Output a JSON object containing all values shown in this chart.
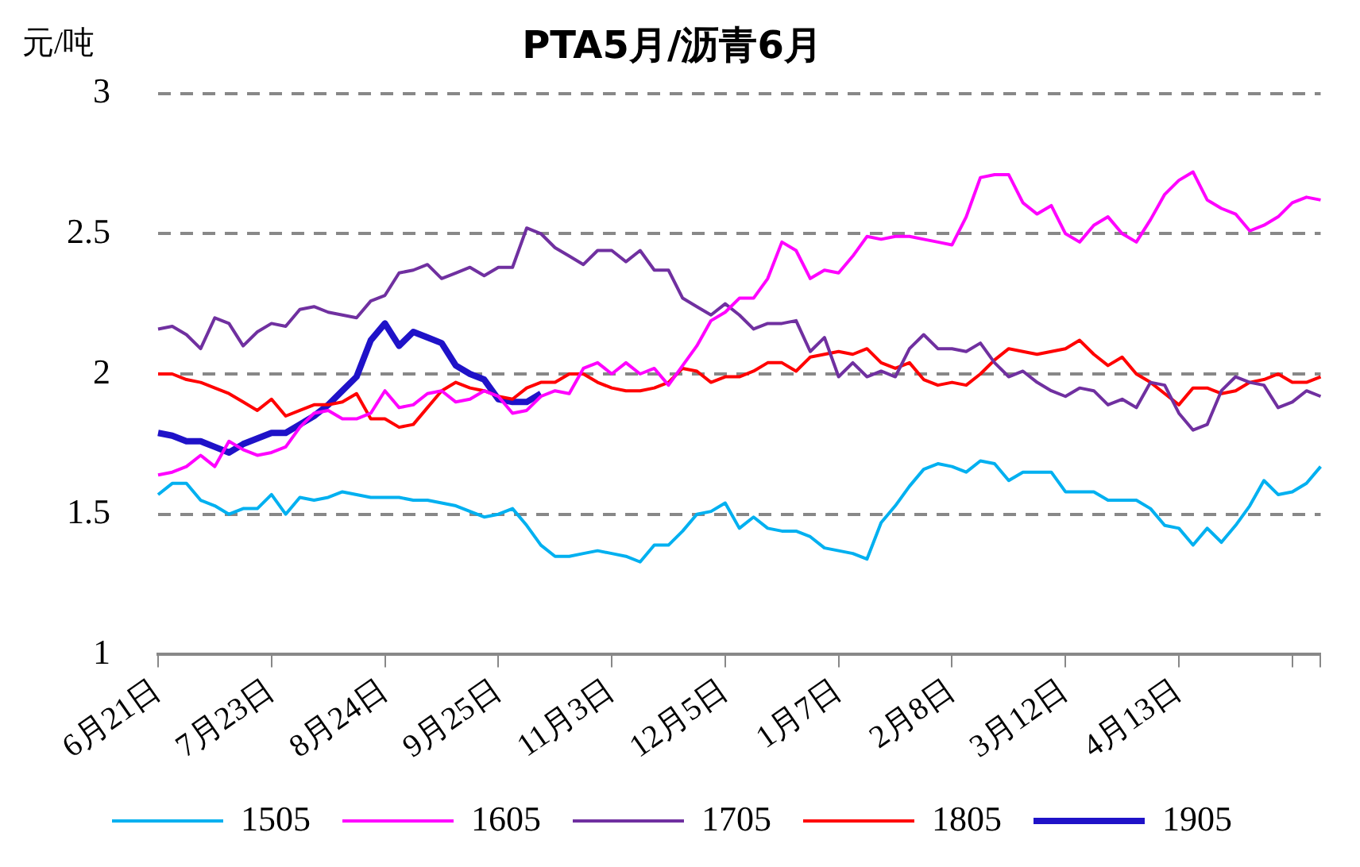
{
  "chart_data": {
    "type": "line",
    "title": "PTA5月/沥青6月",
    "ylabel": "元/吨",
    "categories": [
      "6月21日",
      null,
      null,
      null,
      null,
      null,
      null,
      null,
      "7月23日",
      null,
      null,
      null,
      null,
      null,
      null,
      null,
      "8月24日",
      null,
      null,
      null,
      null,
      null,
      null,
      null,
      "9月25日",
      null,
      null,
      null,
      null,
      null,
      null,
      null,
      "11月3日",
      null,
      null,
      null,
      null,
      null,
      null,
      null,
      "12月5日",
      null,
      null,
      null,
      null,
      null,
      null,
      null,
      "1月7日",
      null,
      null,
      null,
      null,
      null,
      null,
      null,
      "2月8日",
      null,
      null,
      null,
      null,
      null,
      null,
      null,
      "3月12日",
      null,
      null,
      null,
      null,
      null,
      null,
      null,
      "4月13日",
      null,
      null,
      null,
      null,
      null,
      null,
      null,
      null,
      null,
      null
    ],
    "series": [
      {
        "name": "1505",
        "color": "#00b0f0",
        "values": [
          1.57,
          1.61,
          1.61,
          1.55,
          1.53,
          1.5,
          1.52,
          1.52,
          1.57,
          1.5,
          1.56,
          1.55,
          1.56,
          1.58,
          1.57,
          1.56,
          1.56,
          1.56,
          1.55,
          1.55,
          1.54,
          1.53,
          1.51,
          1.49,
          1.5,
          1.52,
          1.46,
          1.39,
          1.35,
          1.35,
          1.36,
          1.37,
          1.36,
          1.35,
          1.33,
          1.39,
          1.39,
          1.44,
          1.5,
          1.51,
          1.54,
          1.45,
          1.49,
          1.45,
          1.44,
          1.44,
          1.42,
          1.38,
          1.37,
          1.36,
          1.34,
          1.47,
          1.53,
          1.6,
          1.66,
          1.68,
          1.67,
          1.65,
          1.69,
          1.68,
          1.62,
          1.65,
          1.65,
          1.65,
          1.58,
          1.58,
          1.58,
          1.55,
          1.55,
          1.55,
          1.52,
          1.46,
          1.45,
          1.39,
          1.45,
          1.4,
          1.46,
          1.53,
          1.62,
          1.57,
          1.58,
          1.61,
          1.67
        ]
      },
      {
        "name": "1605",
        "color": "#ff00ff",
        "values": [
          1.64,
          1.65,
          1.67,
          1.71,
          1.67,
          1.76,
          1.73,
          1.71,
          1.72,
          1.74,
          1.81,
          1.86,
          1.87,
          1.84,
          1.84,
          1.86,
          1.94,
          1.88,
          1.89,
          1.93,
          1.94,
          1.9,
          1.91,
          1.94,
          1.92,
          1.86,
          1.87,
          1.92,
          1.94,
          1.93,
          2.02,
          2.04,
          2.0,
          2.04,
          2.0,
          2.02,
          1.96,
          2.03,
          2.1,
          2.19,
          2.22,
          2.27,
          2.27,
          2.34,
          2.47,
          2.44,
          2.34,
          2.37,
          2.36,
          2.42,
          2.49,
          2.48,
          2.49,
          2.49,
          2.48,
          2.47,
          2.46,
          2.56,
          2.7,
          2.71,
          2.71,
          2.61,
          2.57,
          2.6,
          2.5,
          2.47,
          2.53,
          2.56,
          2.5,
          2.47,
          2.55,
          2.64,
          2.69,
          2.72,
          2.62,
          2.59,
          2.57,
          2.51,
          2.53,
          2.56,
          2.61,
          2.63,
          2.62
        ]
      },
      {
        "name": "1705",
        "color": "#7030a0",
        "values": [
          2.16,
          2.17,
          2.14,
          2.09,
          2.2,
          2.18,
          2.1,
          2.15,
          2.18,
          2.17,
          2.23,
          2.24,
          2.22,
          2.21,
          2.2,
          2.26,
          2.28,
          2.36,
          2.37,
          2.39,
          2.34,
          2.36,
          2.38,
          2.35,
          2.38,
          2.38,
          2.52,
          2.5,
          2.45,
          2.42,
          2.39,
          2.44,
          2.44,
          2.4,
          2.44,
          2.37,
          2.37,
          2.27,
          2.24,
          2.21,
          2.25,
          2.21,
          2.16,
          2.18,
          2.18,
          2.19,
          2.08,
          2.13,
          1.99,
          2.04,
          1.99,
          2.01,
          1.99,
          2.09,
          2.14,
          2.09,
          2.09,
          2.08,
          2.11,
          2.04,
          1.99,
          2.01,
          1.97,
          1.94,
          1.92,
          1.95,
          1.94,
          1.89,
          1.91,
          1.88,
          1.97,
          1.96,
          1.86,
          1.8,
          1.82,
          1.94,
          1.99,
          1.97,
          1.96,
          1.88,
          1.9,
          1.94,
          1.92
        ]
      },
      {
        "name": "1805",
        "color": "#ff0000",
        "values": [
          2.0,
          2.0,
          1.98,
          1.97,
          1.95,
          1.93,
          1.9,
          1.87,
          1.91,
          1.85,
          1.87,
          1.89,
          1.89,
          1.9,
          1.93,
          1.84,
          1.84,
          1.81,
          1.82,
          1.88,
          1.94,
          1.97,
          1.95,
          1.94,
          1.92,
          1.91,
          1.95,
          1.97,
          1.97,
          2.0,
          2.0,
          1.97,
          1.95,
          1.94,
          1.94,
          1.95,
          1.97,
          2.02,
          2.01,
          1.97,
          1.99,
          1.99,
          2.01,
          2.04,
          2.04,
          2.01,
          2.06,
          2.07,
          2.08,
          2.07,
          2.09,
          2.04,
          2.02,
          2.04,
          1.98,
          1.96,
          1.97,
          1.96,
          2.0,
          2.05,
          2.09,
          2.08,
          2.07,
          2.08,
          2.09,
          2.12,
          2.07,
          2.03,
          2.06,
          2.0,
          1.97,
          1.93,
          1.89,
          1.95,
          1.95,
          1.93,
          1.94,
          1.97,
          1.98,
          2.0,
          1.97,
          1.97,
          1.99
        ]
      },
      {
        "name": "1905",
        "color": "#1f12c8",
        "values": [
          1.79,
          1.78,
          1.76,
          1.76,
          1.74,
          1.72,
          1.75,
          1.77,
          1.79,
          1.79,
          1.82,
          1.85,
          1.89,
          1.94,
          1.99,
          2.12,
          2.18,
          2.1,
          2.15,
          2.13,
          2.11,
          2.03,
          2.0,
          1.98,
          1.91,
          1.9,
          1.9,
          1.93,
          null,
          null,
          null,
          null,
          null,
          null,
          null,
          null,
          null,
          null,
          null,
          null,
          null,
          null,
          null,
          null,
          null,
          null,
          null,
          null,
          null,
          null,
          null,
          null,
          null,
          null,
          null,
          null,
          null,
          null,
          null,
          null,
          null,
          null,
          null,
          null,
          null,
          null,
          null,
          null,
          null,
          null,
          null,
          null,
          null,
          null,
          null,
          null,
          null,
          null,
          null,
          null,
          null,
          null,
          null
        ]
      }
    ],
    "ylim": [
      1,
      3
    ],
    "yticks": [
      1,
      1.5,
      2,
      2.5,
      3
    ],
    "grid": "y",
    "legend": "bottom",
    "line_style": "solid",
    "marker": "none"
  }
}
